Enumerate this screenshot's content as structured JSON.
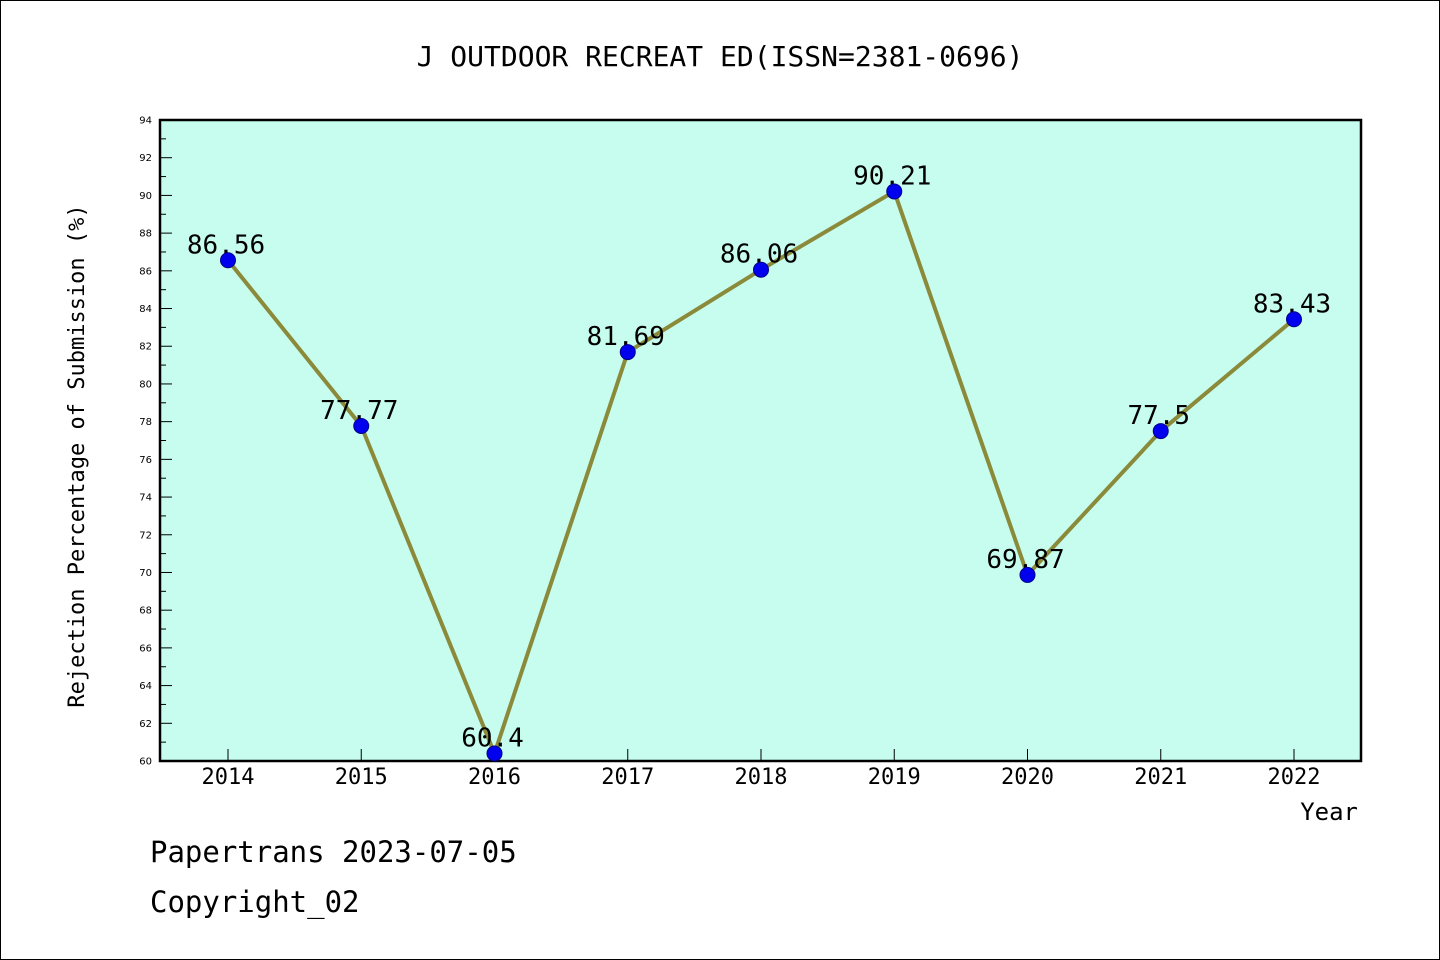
{
  "chart_data": {
    "type": "line",
    "title": "J OUTDOOR RECREAT ED(ISSN=2381-0696)",
    "xlabel": "Year",
    "ylabel": "Rejection Percentage of Submission (%)",
    "categories": [
      "2014",
      "2015",
      "2016",
      "2017",
      "2018",
      "2019",
      "2020",
      "2021",
      "2022"
    ],
    "series": [
      {
        "values": [
          86.56,
          77.77,
          60.4,
          81.69,
          86.06,
          90.21,
          69.87,
          77.5,
          83.43
        ],
        "labels": [
          "86.56",
          "77.77",
          "60.4",
          "81.69",
          "86.06",
          "90.21",
          "69.87",
          "77.5",
          "83.43"
        ]
      }
    ],
    "ylim": [
      60,
      94
    ],
    "yticks": [
      "60",
      "62",
      "64",
      "66",
      "68",
      "70",
      "72",
      "74",
      "76",
      "78",
      "80",
      "82",
      "84",
      "86",
      "88",
      "90",
      "92",
      "94"
    ],
    "grid": false,
    "colors": {
      "plot_background": "#c6fdee",
      "line": "#8b8a3a",
      "marker": "#0000ee",
      "marker_edge": "#00008b"
    }
  },
  "footer": {
    "line1": "Papertrans 2023-07-05",
    "line2": "Copyright_02"
  }
}
